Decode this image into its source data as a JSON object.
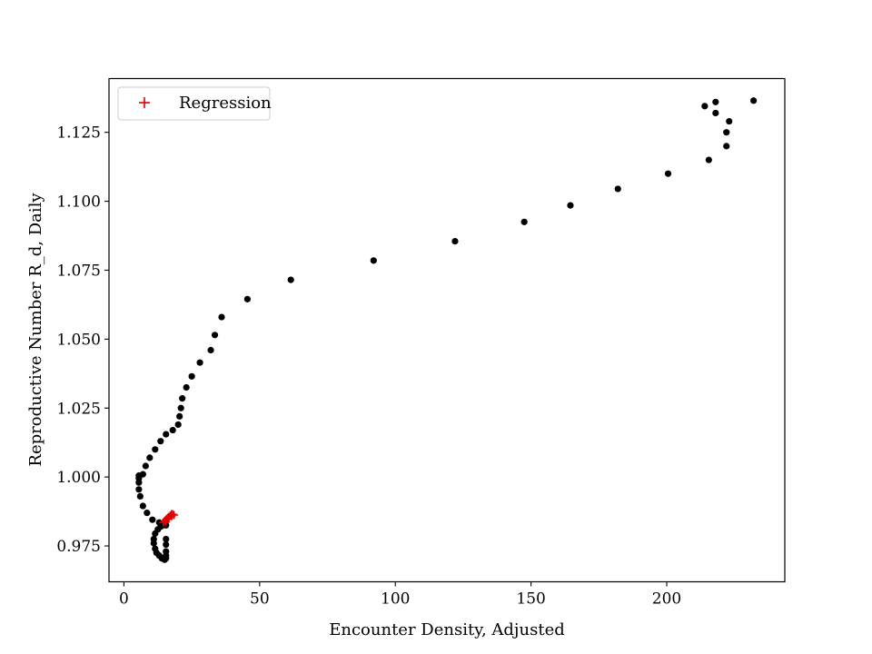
{
  "chart_data": {
    "type": "scatter",
    "title": "",
    "xlabel": "Encounter Density, Adjusted",
    "ylabel": "Reproductive Number R_d, Daily",
    "xlim": [
      -5.5,
      243.5
    ],
    "ylim": [
      0.962,
      1.1445
    ],
    "xticks": [
      0,
      50,
      100,
      150,
      200
    ],
    "xtick_labels": [
      "0",
      "50",
      "100",
      "150",
      "200"
    ],
    "yticks": [
      0.975,
      1.0,
      1.025,
      1.05,
      1.075,
      1.1,
      1.125
    ],
    "ytick_labels": [
      "0.975",
      "1.000",
      "1.025",
      "1.050",
      "1.075",
      "1.100",
      "1.125"
    ],
    "grid": false,
    "legend": {
      "placement": "upper-left",
      "entries": [
        "Regression"
      ]
    },
    "series": [
      {
        "name": "",
        "marker": "dot",
        "color": "#000000",
        "points": [
          [
            232.0,
            1.1365
          ],
          [
            218.0,
            1.136
          ],
          [
            214.0,
            1.1345
          ],
          [
            218.0,
            1.132
          ],
          [
            223.0,
            1.129
          ],
          [
            222.0,
            1.125
          ],
          [
            222.0,
            1.12
          ],
          [
            215.5,
            1.115
          ],
          [
            200.5,
            1.11
          ],
          [
            182.0,
            1.1045
          ],
          [
            164.5,
            1.0985
          ],
          [
            147.5,
            1.0925
          ],
          [
            122.0,
            1.0855
          ],
          [
            92.0,
            1.0785
          ],
          [
            61.5,
            1.0715
          ],
          [
            45.5,
            1.0645
          ],
          [
            36.0,
            1.058
          ],
          [
            33.5,
            1.0515
          ],
          [
            32.0,
            1.046
          ],
          [
            28.0,
            1.0415
          ],
          [
            25.0,
            1.0365
          ],
          [
            23.0,
            1.0325
          ],
          [
            21.5,
            1.0285
          ],
          [
            21.0,
            1.025
          ],
          [
            20.5,
            1.022
          ],
          [
            20.0,
            1.019
          ],
          [
            18.0,
            1.017
          ],
          [
            15.5,
            1.0155
          ],
          [
            13.5,
            1.013
          ],
          [
            11.5,
            1.01
          ],
          [
            9.5,
            1.007
          ],
          [
            8.0,
            1.004
          ],
          [
            7.0,
            1.001
          ],
          [
            5.5,
            1.0005
          ],
          [
            5.5,
            0.9995
          ],
          [
            5.5,
            0.998
          ],
          [
            5.5,
            0.9955
          ],
          [
            6.0,
            0.993
          ],
          [
            7.0,
            0.9895
          ],
          [
            8.5,
            0.987
          ],
          [
            10.5,
            0.9845
          ],
          [
            13.0,
            0.9835
          ],
          [
            15.5,
            0.9825
          ],
          [
            12.5,
            0.981
          ],
          [
            11.5,
            0.9795
          ],
          [
            11.0,
            0.9775
          ],
          [
            11.0,
            0.976
          ],
          [
            11.5,
            0.974
          ],
          [
            12.0,
            0.9725
          ],
          [
            13.0,
            0.9715
          ],
          [
            14.0,
            0.9705
          ],
          [
            15.0,
            0.97
          ],
          [
            15.5,
            0.9705
          ],
          [
            15.5,
            0.9715
          ],
          [
            15.5,
            0.973
          ],
          [
            15.5,
            0.9755
          ],
          [
            15.5,
            0.9775
          ],
          [
            13.5,
            0.982
          ],
          [
            14.5,
            0.9825
          ]
        ]
      },
      {
        "name": "Regression",
        "marker": "plus",
        "color": "#e00000",
        "points": [
          [
            14.5,
            0.9835
          ],
          [
            15.0,
            0.984
          ],
          [
            15.5,
            0.9845
          ],
          [
            16.0,
            0.985
          ],
          [
            16.5,
            0.9855
          ],
          [
            17.0,
            0.986
          ],
          [
            17.5,
            0.9865
          ],
          [
            18.0,
            0.9865
          ],
          [
            15.5,
            0.9838
          ],
          [
            16.5,
            0.9848
          ],
          [
            17.5,
            0.9858
          ],
          [
            18.5,
            0.9862
          ]
        ]
      }
    ]
  }
}
